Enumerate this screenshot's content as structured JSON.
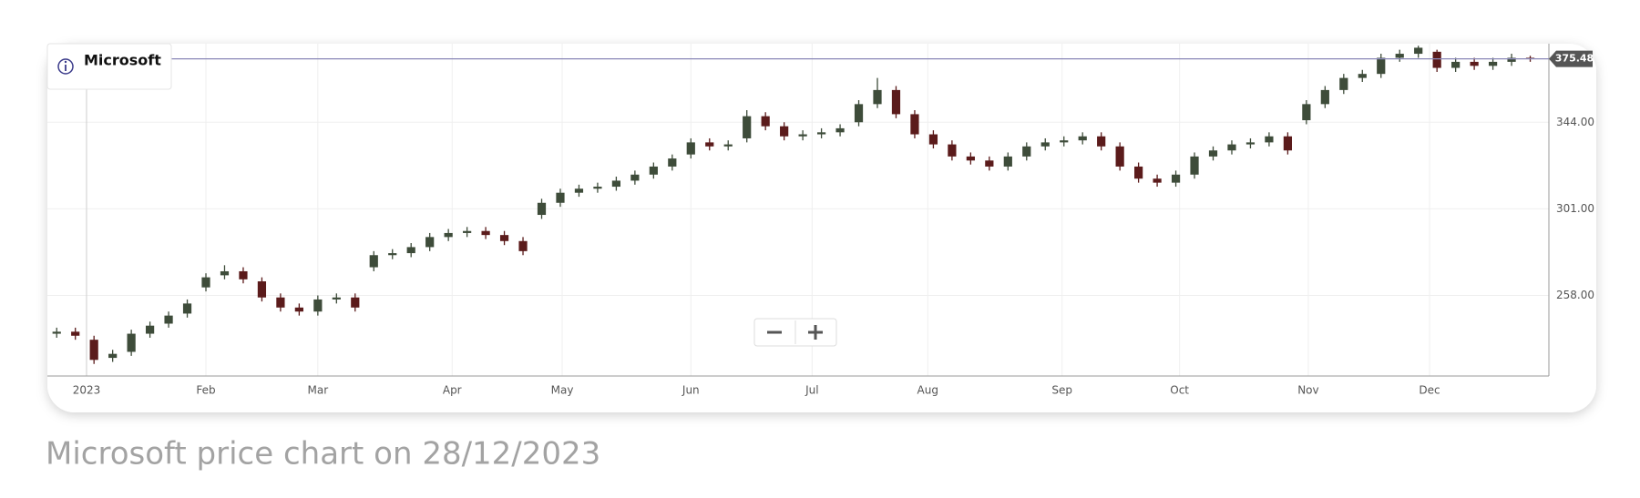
{
  "chart_data": {
    "type": "candlestick",
    "title": "Microsoft",
    "open": [
      239,
      240,
      236,
      227,
      230,
      239,
      244,
      249,
      262,
      268,
      270,
      265,
      257,
      252,
      250,
      256,
      257,
      272,
      278,
      279,
      282,
      287,
      289,
      290,
      288,
      285,
      298,
      304,
      309,
      311,
      312,
      315,
      318,
      322,
      328,
      334,
      332,
      336,
      347,
      342,
      337,
      338,
      339,
      344,
      353,
      360,
      348,
      338,
      333,
      327,
      325,
      322,
      327,
      332,
      334,
      335,
      337,
      332,
      322,
      316,
      314,
      318,
      327,
      330,
      333,
      334,
      337,
      345,
      353,
      360,
      366,
      368,
      376,
      378,
      379,
      371,
      374,
      372,
      374,
      376
    ],
    "high": [
      242,
      242,
      238,
      231,
      241,
      245,
      250,
      256,
      269,
      273,
      272,
      267,
      259,
      254,
      258,
      259,
      259,
      280,
      281,
      284,
      289,
      291,
      292,
      292,
      290,
      287,
      306,
      311,
      313,
      314,
      317,
      320,
      324,
      328,
      336,
      336,
      335,
      350,
      349,
      344,
      340,
      341,
      343,
      355,
      366,
      362,
      350,
      340,
      335,
      329,
      327,
      329,
      334,
      336,
      337,
      339,
      339,
      334,
      324,
      318,
      320,
      329,
      332,
      335,
      336,
      339,
      339,
      355,
      362,
      368,
      370,
      378,
      380,
      382,
      380,
      376,
      376,
      376,
      378,
      377
    ],
    "low": [
      237,
      236,
      224,
      225,
      228,
      237,
      242,
      247,
      260,
      266,
      264,
      255,
      250,
      248,
      248,
      254,
      250,
      270,
      276,
      277,
      280,
      285,
      287,
      286,
      283,
      278,
      296,
      302,
      307,
      309,
      310,
      313,
      316,
      320,
      326,
      330,
      330,
      334,
      340,
      335,
      335,
      336,
      337,
      342,
      351,
      346,
      336,
      331,
      325,
      323,
      320,
      320,
      325,
      330,
      332,
      333,
      330,
      320,
      314,
      312,
      312,
      316,
      325,
      328,
      331,
      332,
      328,
      343,
      351,
      358,
      364,
      366,
      374,
      376,
      369,
      369,
      370,
      370,
      372,
      374
    ],
    "close": [
      240,
      238,
      226,
      229,
      239,
      243,
      248,
      254,
      267,
      270,
      266,
      257,
      252,
      250,
      256,
      257,
      252,
      278,
      279,
      282,
      287,
      289,
      290,
      288,
      285,
      280,
      304,
      309,
      311,
      312,
      315,
      318,
      322,
      326,
      334,
      332,
      333,
      347,
      342,
      337,
      338,
      339,
      341,
      353,
      360,
      348,
      338,
      333,
      327,
      325,
      322,
      327,
      332,
      334,
      335,
      337,
      332,
      322,
      316,
      314,
      318,
      327,
      330,
      333,
      334,
      337,
      330,
      353,
      360,
      366,
      368,
      376,
      378,
      381,
      371,
      374,
      372,
      374,
      376,
      375.48
    ],
    "up_color": "#3e4c3a",
    "down_color": "#5b1b1b",
    "price_line_color": "#8a88b8",
    "xlim": [
      -0.5,
      80
    ],
    "xticks": [
      {
        "value": 1.6,
        "label": "2023"
      },
      {
        "value": 8.0,
        "label": "Feb"
      },
      {
        "value": 14.0,
        "label": "Mar"
      },
      {
        "value": 21.2,
        "label": "Apr"
      },
      {
        "value": 27.1,
        "label": "May"
      },
      {
        "value": 34.0,
        "label": "Jun"
      },
      {
        "value": 40.5,
        "label": "Jul"
      },
      {
        "value": 46.7,
        "label": "Aug"
      },
      {
        "value": 53.9,
        "label": "Sep"
      },
      {
        "value": 60.2,
        "label": "Oct"
      },
      {
        "value": 67.1,
        "label": "Nov"
      },
      {
        "value": 73.6,
        "label": "Dec"
      }
    ],
    "ylim": [
      218,
      383
    ],
    "yticks": [
      {
        "value": 258,
        "label": "258.00"
      },
      {
        "value": 301,
        "label": "301.00"
      },
      {
        "value": 344,
        "label": "344.00"
      }
    ],
    "grid": true
  },
  "caption": "Microsoft price chart on 28/12/2023"
}
